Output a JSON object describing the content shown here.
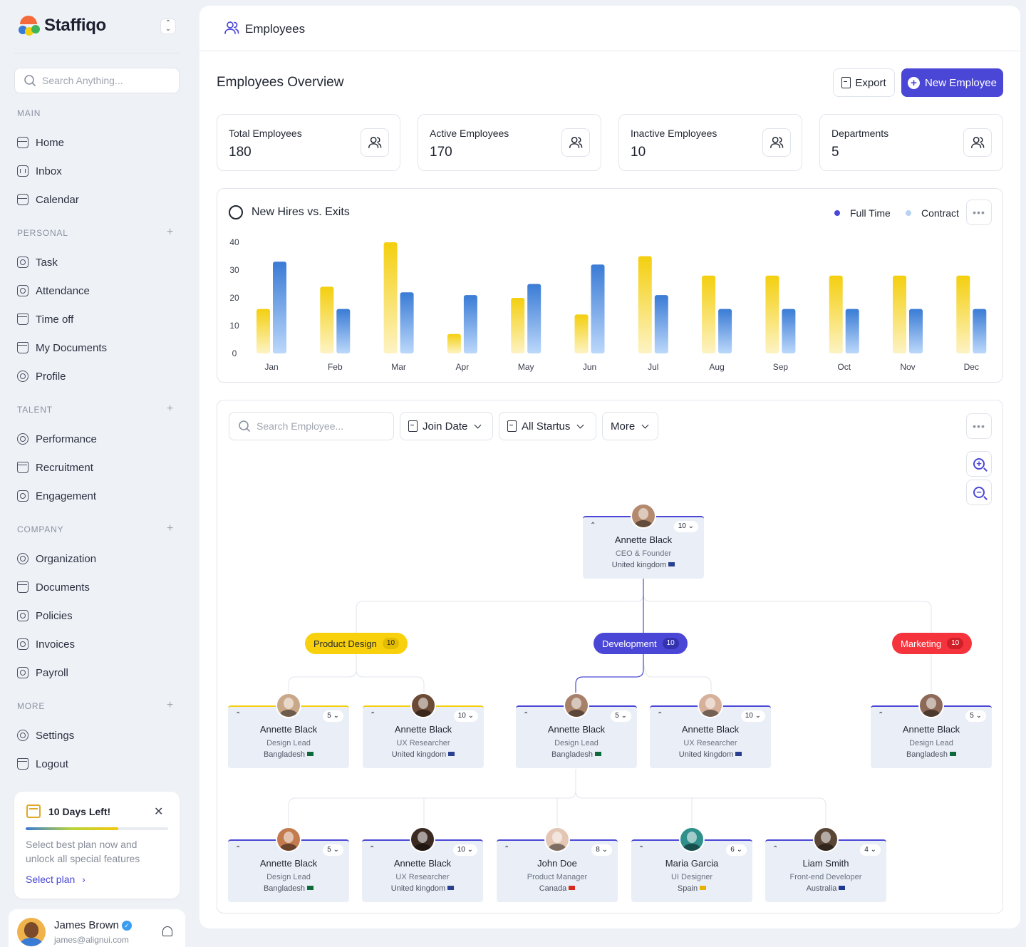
{
  "brand": {
    "name": "Staffiqo"
  },
  "search": {
    "placeholder": "Search Anything..."
  },
  "sidebar": {
    "sections": [
      {
        "title": "MAIN",
        "items": [
          {
            "label": "Home",
            "icon": "home-icon"
          },
          {
            "label": "Inbox",
            "icon": "inbox-icon"
          },
          {
            "label": "Calendar",
            "icon": "calendar-icon"
          }
        ]
      },
      {
        "title": "PERSONAL",
        "items": [
          {
            "label": "Task",
            "icon": "task-icon"
          },
          {
            "label": "Attendance",
            "icon": "attendance-icon"
          },
          {
            "label": "Time off",
            "icon": "time-off-icon"
          },
          {
            "label": "My Documents",
            "icon": "documents-icon"
          },
          {
            "label": "Profile",
            "icon": "profile-icon"
          }
        ]
      },
      {
        "title": "TALENT",
        "items": [
          {
            "label": "Performance",
            "icon": "performance-icon"
          },
          {
            "label": "Recruitment",
            "icon": "recruitment-icon"
          },
          {
            "label": "Engagement",
            "icon": "engagement-icon"
          }
        ]
      },
      {
        "title": "COMPANY",
        "items": [
          {
            "label": "Organization",
            "icon": "organization-icon"
          },
          {
            "label": "Documents",
            "icon": "documents-icon"
          },
          {
            "label": "Policies",
            "icon": "policies-icon"
          },
          {
            "label": "Invoices",
            "icon": "invoices-icon"
          },
          {
            "label": "Payroll",
            "icon": "payroll-icon"
          }
        ]
      },
      {
        "title": "MORE",
        "items": [
          {
            "label": "Settings",
            "icon": "settings-icon"
          },
          {
            "label": "Logout",
            "icon": "logout-icon"
          }
        ]
      }
    ]
  },
  "upgrade": {
    "title": "10 Days Left!",
    "description": "Select best plan now and unlock all special features",
    "link": "Select plan",
    "progress": 0.65
  },
  "user": {
    "name": "James Brown",
    "email": "james@alignui.com"
  },
  "topbar": {
    "title": "Employees"
  },
  "page": {
    "title": "Employees Overview",
    "export_label": "Export",
    "new_label": "New Employee"
  },
  "stats": [
    {
      "label": "Total Employees",
      "value": "180"
    },
    {
      "label": "Active Employees",
      "value": "170"
    },
    {
      "label": "Inactive Employees",
      "value": "10"
    },
    {
      "label": "Departments",
      "value": "5"
    }
  ],
  "chart": {
    "title": "New Hires vs. Exits",
    "legend": [
      {
        "label": "Full Time",
        "color": "#4b47d6"
      },
      {
        "label": "Contract",
        "color": "#b9d2f2"
      }
    ]
  },
  "chart_data": {
    "type": "bar",
    "title": "New Hires vs. Exits",
    "categories": [
      "Jan",
      "Feb",
      "Mar",
      "Apr",
      "May",
      "Jun",
      "Jul",
      "Aug",
      "Sep",
      "Oct",
      "Nov",
      "Dec"
    ],
    "series": [
      {
        "name": "Full Time",
        "color": "#f4cf0f",
        "values": [
          16,
          24,
          40,
          7,
          20,
          14,
          35,
          28,
          28,
          28,
          28,
          28
        ]
      },
      {
        "name": "Contract",
        "color": "#3a7bd5",
        "values": [
          33,
          16,
          22,
          21,
          25,
          32,
          21,
          16,
          16,
          16,
          16,
          16
        ]
      }
    ],
    "yticks": [
      "0",
      "10",
      "20",
      "30",
      "40"
    ],
    "ylim": [
      0,
      40
    ],
    "grid": false,
    "legend_position": "top-right"
  },
  "filters": {
    "search_placeholder": "Search Employee...",
    "join_date": "Join Date",
    "status": "All Startus",
    "more": "More"
  },
  "org": {
    "root": {
      "name": "Annette Black",
      "role": "CEO & Founder",
      "location": "United kingdom",
      "count": "10 ⌄",
      "avatar": "#b48a6e"
    },
    "departments": [
      {
        "name": "Product Design",
        "count": "10",
        "bg": "#f8d10c",
        "fg": "#1f2430",
        "badge_bg": "#e3bb00",
        "badge_fg": "#1f2430"
      },
      {
        "name": "Development",
        "count": "10",
        "bg": "#4b47d6",
        "fg": "#ffffff",
        "badge_bg": "#3532b0",
        "badge_fg": "#ffffff"
      },
      {
        "name": "Marketing",
        "count": "10",
        "bg": "#f5333c",
        "fg": "#ffffff",
        "badge_bg": "#cf1f28",
        "badge_fg": "#ffffff"
      }
    ],
    "level2": [
      {
        "name": "Annette Black",
        "role": "Design Lead",
        "location": "Bangladesh",
        "count": "5 ⌄",
        "avatar": "#c9a88a",
        "flag": "#0b6b3a"
      },
      {
        "name": "Annette Black",
        "role": "UX Researcher",
        "location": "United kingdom",
        "count": "10 ⌄",
        "avatar": "#6b4a36",
        "flag": "#2a3f8f"
      },
      {
        "name": "Annette Black",
        "role": "Design Lead",
        "location": "Bangladesh",
        "count": "5 ⌄",
        "avatar": "#a7806a",
        "flag": "#0b6b3a"
      },
      {
        "name": "Annette Black",
        "role": "UX Researcher",
        "location": "United kingdom",
        "count": "10 ⌄",
        "avatar": "#d6b09a",
        "flag": "#2a3f8f"
      },
      {
        "name": "Annette Black",
        "role": "Design Lead",
        "location": "Bangladesh",
        "count": "5 ⌄",
        "avatar": "#8d6a57",
        "flag": "#0b6b3a"
      }
    ],
    "level3": [
      {
        "name": "Annette Black",
        "role": "Design Lead",
        "location": "Bangladesh",
        "count": "5 ⌄",
        "avatar": "#c27a4e",
        "flag": "#0b6b3a"
      },
      {
        "name": "Annette Black",
        "role": "UX Researcher",
        "location": "United kingdom",
        "count": "10 ⌄",
        "avatar": "#3b2a22",
        "flag": "#2a3f8f"
      },
      {
        "name": "John Doe",
        "role": "Product Manager",
        "location": "Canada",
        "count": "8 ⌄",
        "avatar": "#e3c6b4",
        "flag": "#d52b1e"
      },
      {
        "name": "Maria Garcia",
        "role": "UI Designer",
        "location": "Spain",
        "count": "6 ⌄",
        "avatar": "#2f8f8a",
        "flag": "#e8b000"
      },
      {
        "name": "Liam Smith",
        "role": "Front-end Developer",
        "location": "Australia",
        "count": "4 ⌄",
        "avatar": "#5a4636",
        "flag": "#1f3a8f"
      }
    ]
  }
}
